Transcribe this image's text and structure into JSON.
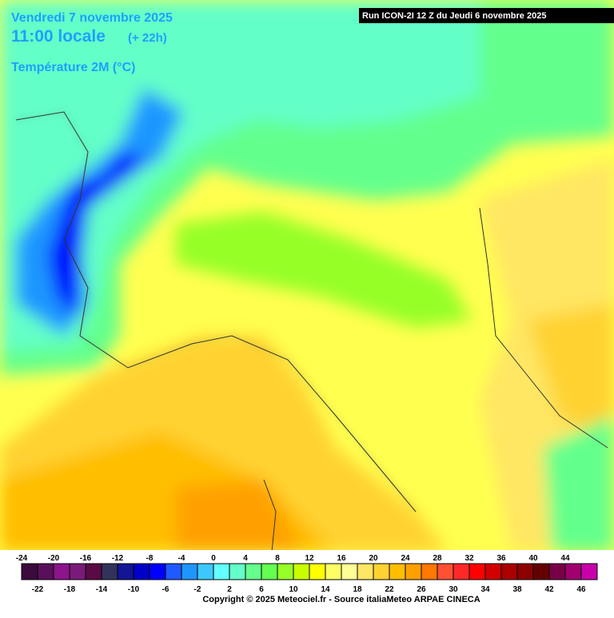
{
  "header": {
    "date": "Vendredi 7 novembre 2025",
    "time": "11:00 locale",
    "offset": "(+ 22h)",
    "parameter": "Température 2M (°C)",
    "run": "Run ICON-2I 12 Z du Jeudi 6 novembre 2025"
  },
  "legend": {
    "ticks": [
      -24,
      -22,
      -20,
      -18,
      -16,
      -14,
      -12,
      -10,
      -8,
      -6,
      -4,
      -2,
      0,
      2,
      4,
      6,
      8,
      10,
      12,
      14,
      16,
      18,
      20,
      22,
      24,
      26,
      28,
      30,
      32,
      34,
      36,
      38,
      40,
      42,
      44,
      46
    ],
    "colors": [
      "#3c0a3c",
      "#5a0f5a",
      "#8c148c",
      "#7a1a7a",
      "#5a0a46",
      "#32325a",
      "#141496",
      "#0000c8",
      "#0000ff",
      "#1e5aff",
      "#1e96ff",
      "#3cc8ff",
      "#64ffff",
      "#64ffc8",
      "#64ff8c",
      "#64ff50",
      "#96ff28",
      "#c8ff00",
      "#ffff00",
      "#ffff64",
      "#ffff96",
      "#ffe664",
      "#ffd232",
      "#ffbe00",
      "#ffa000",
      "#ff7800",
      "#ff5032",
      "#ff2828",
      "#ff0000",
      "#d20000",
      "#aa0000",
      "#8c0000",
      "#640000",
      "#780046",
      "#a0006e",
      "#c800aa"
    ]
  },
  "footer": {
    "copyright": "Copyright © 2025 Meteociel.fr - Source italiaMeteo ARPAE CINECA"
  }
}
